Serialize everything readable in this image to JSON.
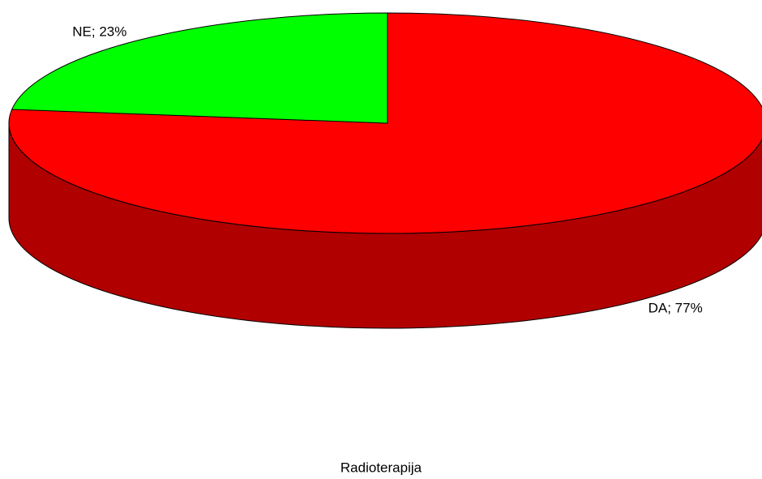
{
  "chart_data": {
    "type": "pie3d",
    "title": "Radioterapija",
    "categories": [
      "DA",
      "NE"
    ],
    "values": [
      77,
      23
    ],
    "value_labels": [
      "DA; 77%",
      "NE; 23%"
    ],
    "colors": [
      "#ff0000",
      "#00ff00"
    ]
  }
}
